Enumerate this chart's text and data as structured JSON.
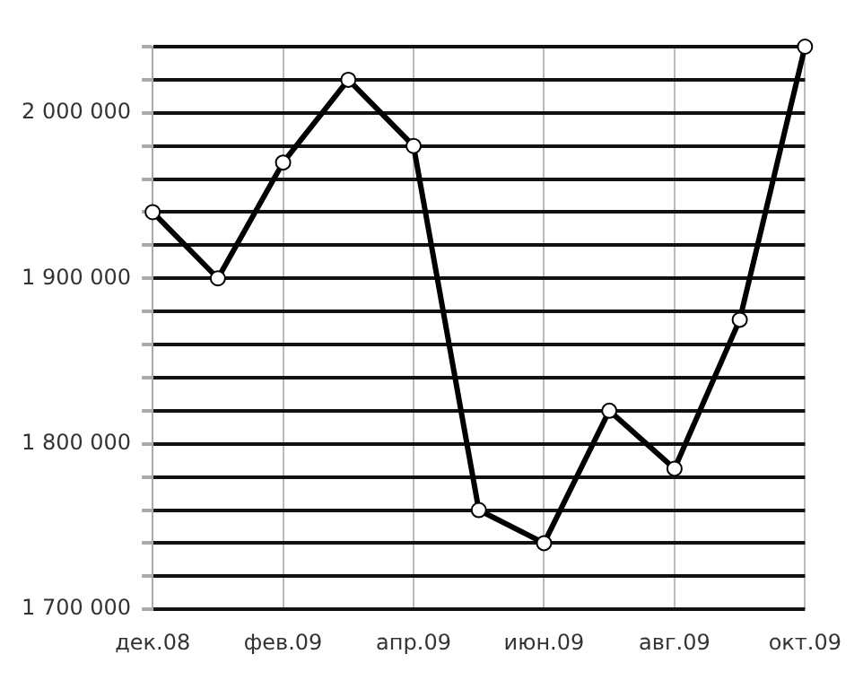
{
  "chart_data": {
    "type": "line",
    "categories": [
      "дек.08",
      null,
      "фев.09",
      null,
      "апр.09",
      null,
      "июн.09",
      null,
      "авг.09",
      null,
      "окт.09"
    ],
    "series": [
      {
        "color": "#000000",
        "values": [
          1940000,
          1900000,
          1970000,
          2020000,
          1980000,
          1760000,
          1740000,
          1820000,
          1785000,
          1875000,
          2040000
        ]
      }
    ],
    "ylim": [
      1700000,
      2040000
    ],
    "yticks": [
      {
        "value": 1700000,
        "label": "1 700 000"
      },
      {
        "value": 1720000,
        "label": null
      },
      {
        "value": 1740000,
        "label": null
      },
      {
        "value": 1760000,
        "label": null
      },
      {
        "value": 1780000,
        "label": null
      },
      {
        "value": 1800000,
        "label": "1 800 000"
      },
      {
        "value": 1820000,
        "label": null
      },
      {
        "value": 1840000,
        "label": null
      },
      {
        "value": 1860000,
        "label": null
      },
      {
        "value": 1880000,
        "label": null
      },
      {
        "value": 1900000,
        "label": "1 900 000"
      },
      {
        "value": 1920000,
        "label": null
      },
      {
        "value": 1940000,
        "label": null
      },
      {
        "value": 1960000,
        "label": null
      },
      {
        "value": 1980000,
        "label": null
      },
      {
        "value": 2000000,
        "label": "2 000 000"
      },
      {
        "value": 2020000,
        "label": null
      },
      {
        "value": 2040000,
        "label": null
      }
    ],
    "grid": true,
    "legend": false,
    "marker": "circle",
    "line_style": "solid"
  }
}
